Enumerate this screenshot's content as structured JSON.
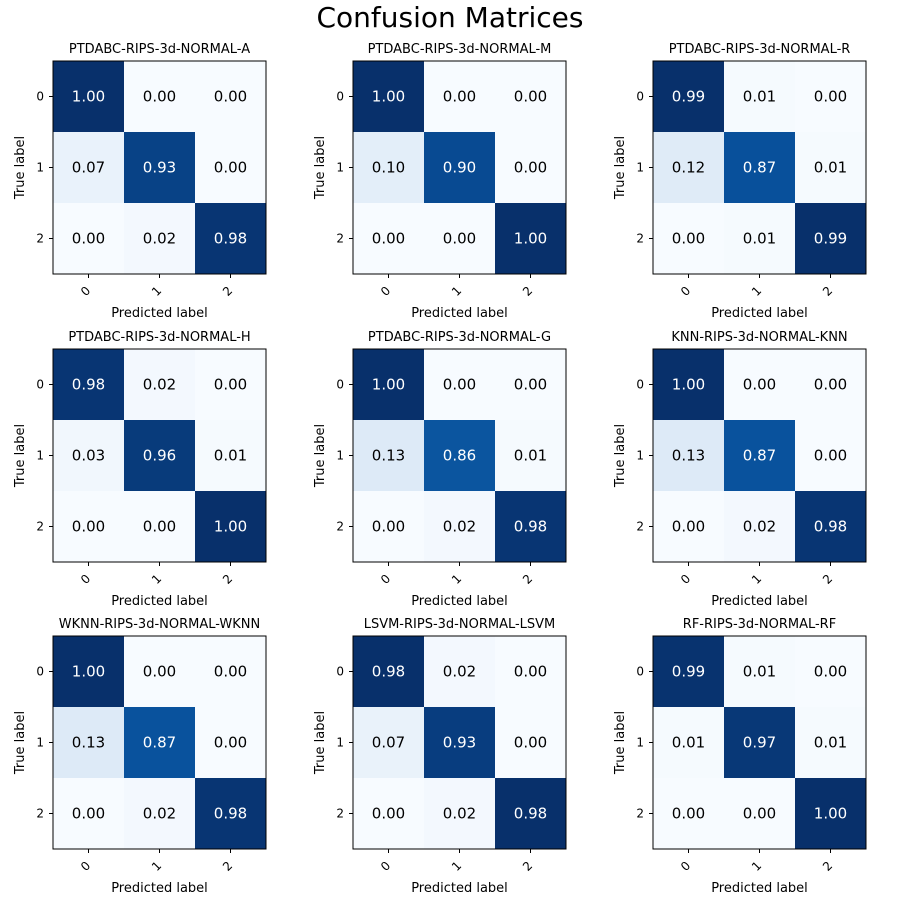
{
  "figure": {
    "title": "Confusion Matrices"
  },
  "chart_data": [
    {
      "type": "heatmap",
      "title": "PTDABC-RIPS-3d-NORMAL-A",
      "xlabel": "Predicted label",
      "ylabel": "True label",
      "x_ticks": [
        "0",
        "1",
        "2"
      ],
      "y_ticks": [
        "0",
        "1",
        "2"
      ],
      "values": [
        [
          1.0,
          0.0,
          0.0
        ],
        [
          0.07,
          0.93,
          0.0
        ],
        [
          0.0,
          0.02,
          0.98
        ]
      ]
    },
    {
      "type": "heatmap",
      "title": "PTDABC-RIPS-3d-NORMAL-M",
      "xlabel": "Predicted label",
      "ylabel": "True label",
      "x_ticks": [
        "0",
        "1",
        "2"
      ],
      "y_ticks": [
        "0",
        "1",
        "2"
      ],
      "values": [
        [
          1.0,
          0.0,
          0.0
        ],
        [
          0.1,
          0.9,
          0.0
        ],
        [
          0.0,
          0.0,
          1.0
        ]
      ]
    },
    {
      "type": "heatmap",
      "title": "PTDABC-RIPS-3d-NORMAL-R",
      "xlabel": "Predicted label",
      "ylabel": "True label",
      "x_ticks": [
        "0",
        "1",
        "2"
      ],
      "y_ticks": [
        "0",
        "1",
        "2"
      ],
      "values": [
        [
          0.99,
          0.01,
          0.0
        ],
        [
          0.12,
          0.87,
          0.01
        ],
        [
          0.0,
          0.01,
          0.99
        ]
      ]
    },
    {
      "type": "heatmap",
      "title": "PTDABC-RIPS-3d-NORMAL-H",
      "xlabel": "Predicted label",
      "ylabel": "True label",
      "x_ticks": [
        "0",
        "1",
        "2"
      ],
      "y_ticks": [
        "0",
        "1",
        "2"
      ],
      "values": [
        [
          0.98,
          0.02,
          0.0
        ],
        [
          0.03,
          0.96,
          0.01
        ],
        [
          0.0,
          0.0,
          1.0
        ]
      ]
    },
    {
      "type": "heatmap",
      "title": "PTDABC-RIPS-3d-NORMAL-G",
      "xlabel": "Predicted label",
      "ylabel": "True label",
      "x_ticks": [
        "0",
        "1",
        "2"
      ],
      "y_ticks": [
        "0",
        "1",
        "2"
      ],
      "values": [
        [
          1.0,
          0.0,
          0.0
        ],
        [
          0.13,
          0.86,
          0.01
        ],
        [
          0.0,
          0.02,
          0.98
        ]
      ]
    },
    {
      "type": "heatmap",
      "title": "KNN-RIPS-3d-NORMAL-KNN",
      "xlabel": "Predicted label",
      "ylabel": "True label",
      "x_ticks": [
        "0",
        "1",
        "2"
      ],
      "y_ticks": [
        "0",
        "1",
        "2"
      ],
      "values": [
        [
          1.0,
          0.0,
          0.0
        ],
        [
          0.13,
          0.87,
          0.0
        ],
        [
          0.0,
          0.02,
          0.98
        ]
      ]
    },
    {
      "type": "heatmap",
      "title": "WKNN-RIPS-3d-NORMAL-WKNN",
      "xlabel": "Predicted label",
      "ylabel": "True label",
      "x_ticks": [
        "0",
        "1",
        "2"
      ],
      "y_ticks": [
        "0",
        "1",
        "2"
      ],
      "values": [
        [
          1.0,
          0.0,
          0.0
        ],
        [
          0.13,
          0.87,
          0.0
        ],
        [
          0.0,
          0.02,
          0.98
        ]
      ]
    },
    {
      "type": "heatmap",
      "title": "LSVM-RIPS-3d-NORMAL-LSVM",
      "xlabel": "Predicted label",
      "ylabel": "True label",
      "x_ticks": [
        "0",
        "1",
        "2"
      ],
      "y_ticks": [
        "0",
        "1",
        "2"
      ],
      "values": [
        [
          0.98,
          0.02,
          0.0
        ],
        [
          0.07,
          0.93,
          0.0
        ],
        [
          0.0,
          0.02,
          0.98
        ]
      ]
    },
    {
      "type": "heatmap",
      "title": "RF-RIPS-3d-NORMAL-RF",
      "xlabel": "Predicted label",
      "ylabel": "True label",
      "x_ticks": [
        "0",
        "1",
        "2"
      ],
      "y_ticks": [
        "0",
        "1",
        "2"
      ],
      "values": [
        [
          0.99,
          0.01,
          0.0
        ],
        [
          0.01,
          0.97,
          0.01
        ],
        [
          0.0,
          0.0,
          1.0
        ]
      ]
    }
  ],
  "colormap": {
    "name": "Blues",
    "low": "#f7fbff",
    "high": "#08306b"
  }
}
